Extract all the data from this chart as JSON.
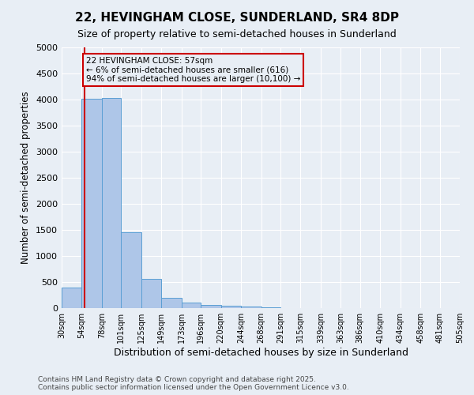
{
  "title": "22, HEVINGHAM CLOSE, SUNDERLAND, SR4 8DP",
  "subtitle": "Size of property relative to semi-detached houses in Sunderland",
  "xlabel": "Distribution of semi-detached houses by size in Sunderland",
  "ylabel": "Number of semi-detached properties",
  "footer_line1": "Contains HM Land Registry data © Crown copyright and database right 2025.",
  "footer_line2": "Contains public sector information licensed under the Open Government Licence v3.0.",
  "annotation_line1": "22 HEVINGHAM CLOSE: 57sqm",
  "annotation_line2": "← 6% of semi-detached houses are smaller (616)",
  "annotation_line3": "94% of semi-detached houses are larger (10,100) →",
  "property_size_sqm": 57,
  "bar_categories": [
    "30sqm",
    "54sqm",
    "78sqm",
    "101sqm",
    "125sqm",
    "149sqm",
    "173sqm",
    "196sqm",
    "220sqm",
    "244sqm",
    "268sqm",
    "291sqm",
    "315sqm",
    "339sqm",
    "363sqm",
    "386sqm",
    "410sqm",
    "434sqm",
    "458sqm",
    "481sqm",
    "505sqm"
  ],
  "bar_edges": [
    30,
    54,
    78,
    101,
    125,
    149,
    173,
    196,
    220,
    244,
    268,
    291,
    315,
    339,
    363,
    386,
    410,
    434,
    458,
    481,
    505
  ],
  "bar_values": [
    400,
    4020,
    4030,
    1450,
    560,
    200,
    100,
    65,
    45,
    35,
    20,
    0,
    0,
    0,
    0,
    0,
    0,
    0,
    0,
    0
  ],
  "bar_color": "#aec6e8",
  "bar_edge_color": "#5a9fd4",
  "highlight_line_color": "#cc0000",
  "annotation_box_color": "#cc0000",
  "background_color": "#e8eef5",
  "ylim": [
    0,
    5000
  ],
  "yticks": [
    0,
    500,
    1000,
    1500,
    2000,
    2500,
    3000,
    3500,
    4000,
    4500,
    5000
  ]
}
